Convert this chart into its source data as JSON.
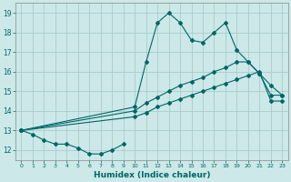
{
  "xlabel": "Humidex (Indice chaleur)",
  "background_color": "#cce8e8",
  "grid_color": "#aacccc",
  "line_color": "#006666",
  "x_values": [
    0,
    1,
    2,
    3,
    4,
    5,
    6,
    7,
    8,
    9,
    10,
    11,
    12,
    13,
    14,
    15,
    16,
    17,
    18,
    19,
    20,
    21,
    22,
    23
  ],
  "line_bottom": [
    13.0,
    12.8,
    12.5,
    12.3,
    12.3,
    12.1,
    11.8,
    11.8,
    12.0,
    12.3,
    null,
    null,
    null,
    null,
    null,
    null,
    null,
    null,
    null,
    null,
    null,
    null,
    null,
    null
  ],
  "line_upper": [
    13.0,
    null,
    null,
    null,
    null,
    null,
    null,
    null,
    null,
    null,
    14.2,
    16.5,
    18.5,
    19.0,
    18.5,
    17.6,
    17.5,
    18.0,
    18.5,
    17.1,
    16.5,
    15.9,
    15.3,
    14.8
  ],
  "line_mid1": [
    13.0,
    null,
    null,
    null,
    null,
    null,
    null,
    null,
    null,
    null,
    14.0,
    14.4,
    14.7,
    15.0,
    15.3,
    15.5,
    15.7,
    16.0,
    16.2,
    16.5,
    16.5,
    15.9,
    14.8,
    14.8
  ],
  "line_mid2": [
    13.0,
    null,
    null,
    null,
    null,
    null,
    null,
    null,
    null,
    null,
    13.7,
    13.9,
    14.2,
    14.4,
    14.6,
    14.8,
    15.0,
    15.2,
    15.4,
    15.6,
    15.8,
    16.0,
    14.5,
    14.5
  ],
  "ylim": [
    11.5,
    19.5
  ],
  "yticks": [
    12,
    13,
    14,
    15,
    16,
    17,
    18,
    19
  ],
  "xlim": [
    -0.5,
    23.5
  ],
  "xticks": [
    0,
    1,
    2,
    3,
    4,
    5,
    6,
    7,
    8,
    9,
    10,
    11,
    12,
    13,
    14,
    15,
    16,
    17,
    18,
    19,
    20,
    21,
    22,
    23
  ],
  "xtick_labels": [
    "0",
    "1",
    "2",
    "3",
    "4",
    "5",
    "6",
    "7",
    "8",
    "9",
    "10",
    "11",
    "12",
    "13",
    "14",
    "15",
    "16",
    "17",
    "18",
    "19",
    "20",
    "21",
    "22",
    "23"
  ],
  "marker": "D",
  "markersize": 2.0,
  "linewidth": 0.8
}
